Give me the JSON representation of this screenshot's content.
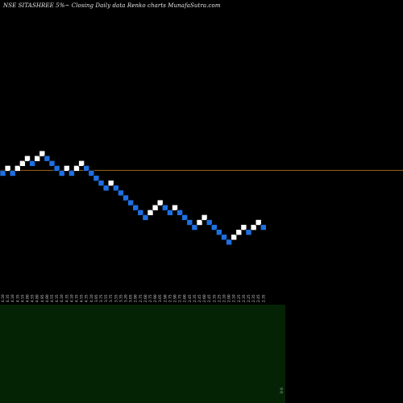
{
  "title": "NSE SITASHREE 5%~  Closing Daily data  Renko  charts MunafaSutra.com",
  "colors": {
    "background": "#000000",
    "up_brick": "#ffffff",
    "down_brick": "#1e6fe0",
    "brick_border": "#000000",
    "reference_line": "#a0661e",
    "volume_panel": "#042204",
    "tick_label": "#cfcfcf"
  },
  "chart_data": {
    "type": "renko",
    "direction": [
      -1,
      1,
      -1,
      1,
      1,
      1,
      -1,
      1,
      1,
      -1,
      -1,
      -1,
      -1,
      1,
      -1,
      1,
      1,
      -1,
      -1,
      -1,
      -1,
      -1,
      1,
      -1,
      -1,
      -1,
      -1,
      -1,
      -1,
      -1,
      1,
      1,
      1,
      -1,
      -1,
      1,
      -1,
      -1,
      -1,
      -1,
      1,
      1,
      -1,
      -1,
      -1,
      -1,
      -1,
      1,
      1,
      1,
      -1,
      1,
      1,
      -1
    ],
    "level": [
      0,
      1,
      0,
      1,
      2,
      3,
      2,
      3,
      4,
      3,
      2,
      1,
      0,
      1,
      0,
      1,
      2,
      1,
      0,
      -1,
      -2,
      -3,
      -2,
      -3,
      -4,
      -5,
      -6,
      -7,
      -8,
      -9,
      -8,
      -7,
      -6,
      -7,
      -8,
      -7,
      -8,
      -9,
      -10,
      -11,
      -10,
      -9,
      -10,
      -11,
      -12,
      -13,
      -14,
      -13,
      -12,
      -11,
      -12,
      -11,
      -10,
      -11
    ],
    "x_tick_labels": [
      "4.10",
      "4.35",
      "4.10",
      "4.35",
      "4.55",
      "4.80",
      "4.55",
      "4.80",
      "4.95",
      "4.80",
      "4.55",
      "4.35",
      "4.10",
      "4.35",
      "4.10",
      "4.35",
      "4.55",
      "4.35",
      "4.10",
      "3.95",
      "3.75",
      "3.55",
      "3.75",
      "3.55",
      "3.35",
      "3.20",
      "3.05",
      "2.90",
      "2.75",
      "2.60",
      "2.75",
      "2.90",
      "3.05",
      "2.90",
      "2.75",
      "2.90",
      "2.75",
      "2.60",
      "2.45",
      "2.35",
      "2.45",
      "2.60",
      "2.45",
      "2.35",
      "2.25",
      "2.10",
      "2.00",
      "2.10",
      "2.25",
      "2.35",
      "2.25",
      "2.35",
      "2.45",
      "2.35"
    ],
    "reference_line_level": 0.6,
    "volume_panel_label": "0 0"
  }
}
